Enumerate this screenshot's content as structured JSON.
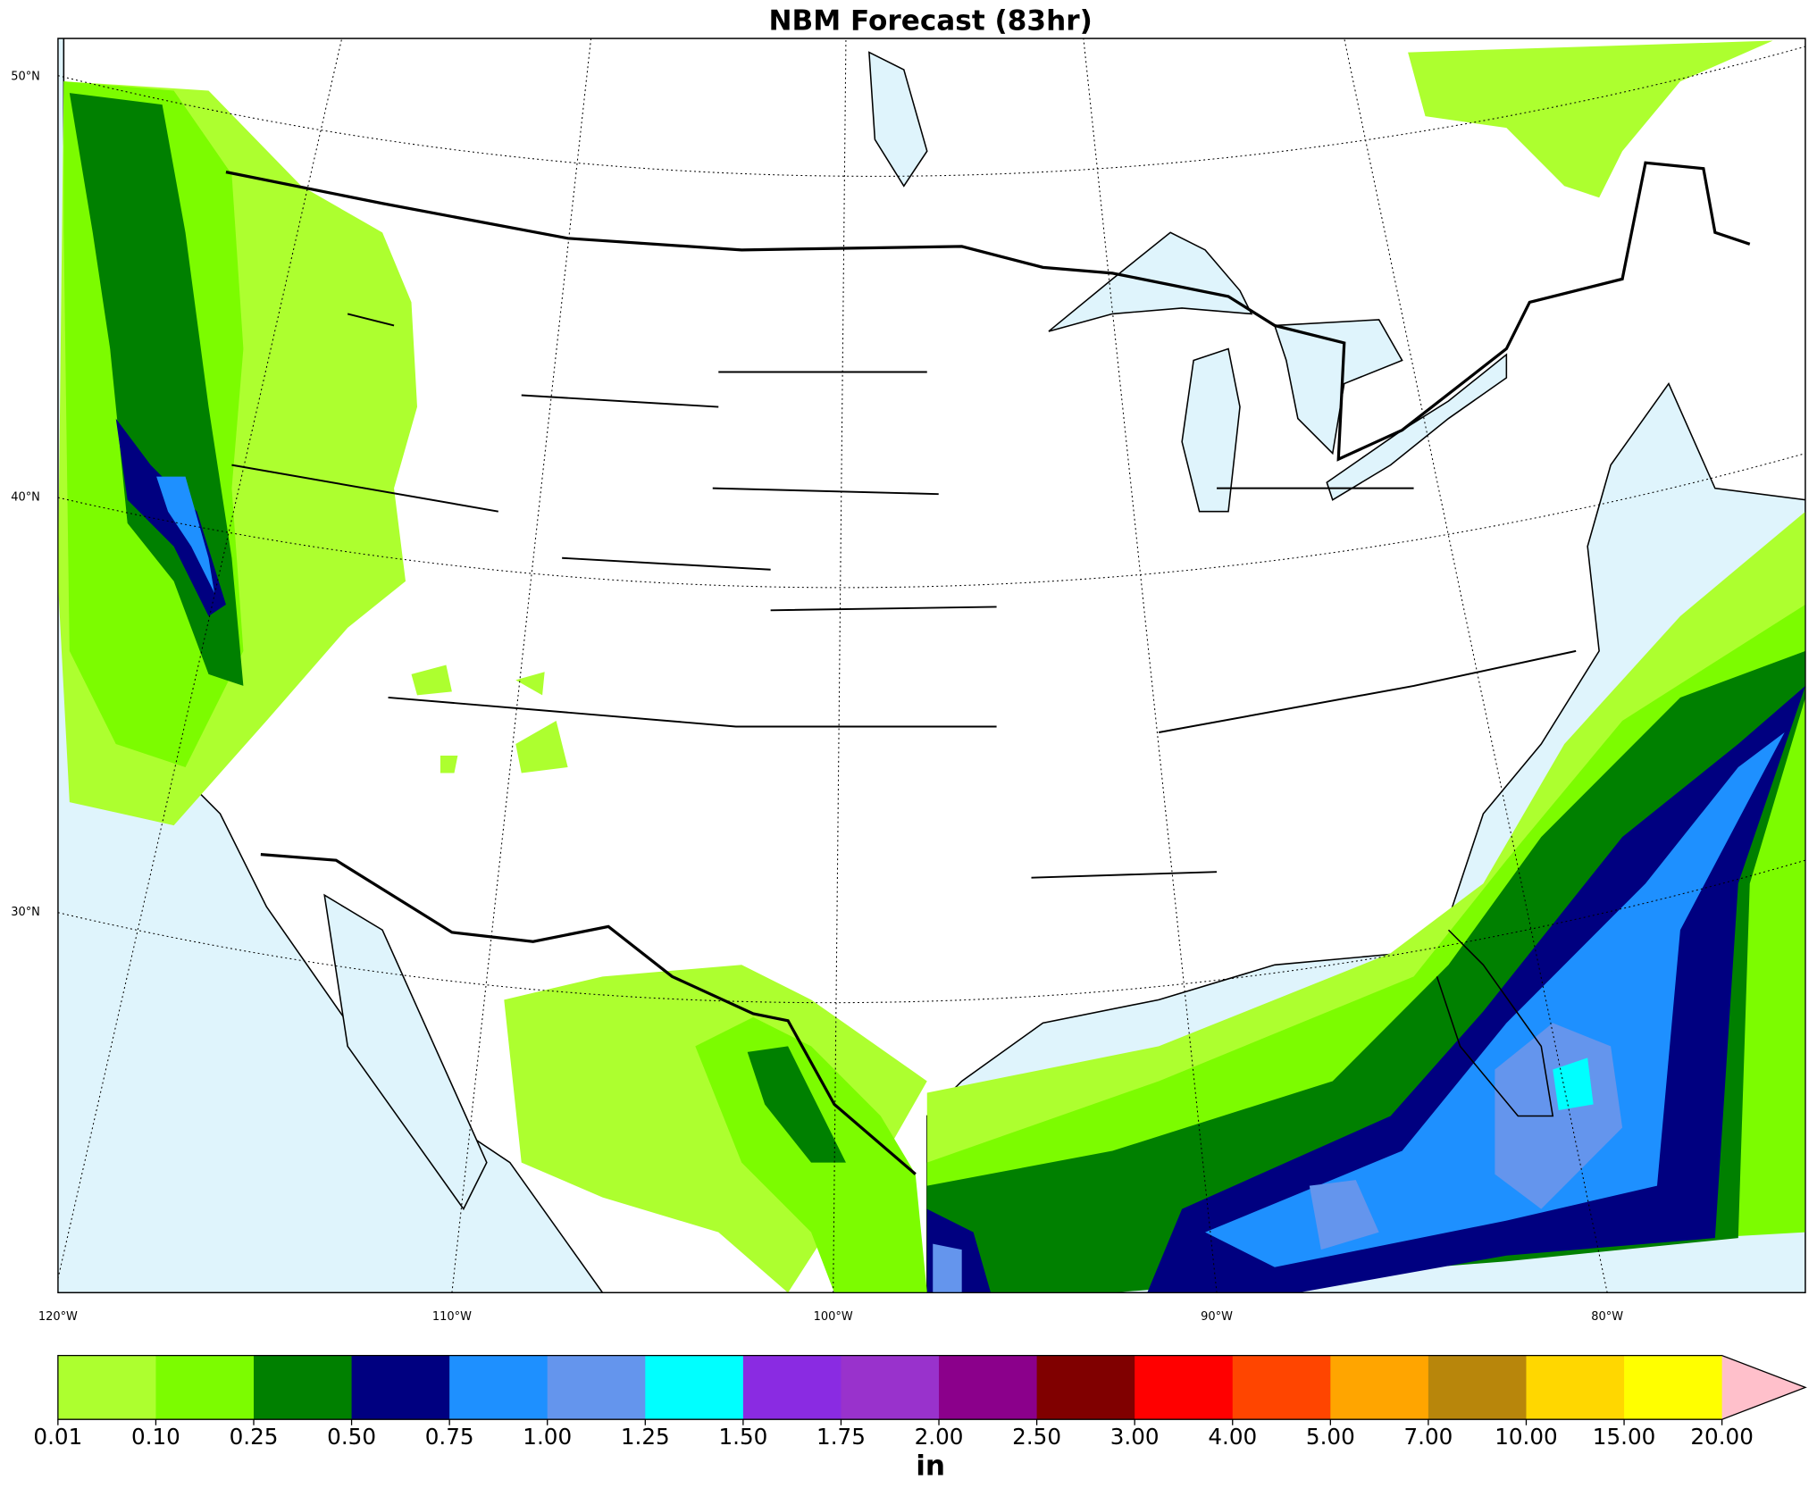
{
  "map": {
    "title": "NBM Forecast (83hr)",
    "lat_labels": [
      "50°N",
      "40°N",
      "30°N"
    ],
    "lon_labels": [
      "120°W",
      "110°W",
      "100°W",
      "90°W",
      "80°W"
    ],
    "colorbar": {
      "label": "in",
      "levels": [
        0.01,
        {
          "value": 0.1,
          "label": "0.10"
        },
        0.25,
        {
          "value": 0.5,
          "label": "0.50"
        },
        0.75,
        {
          "value": 1,
          "label": "1.00"
        },
        1.25,
        {
          "value": 1.5,
          "label": "1.50"
        },
        1.75,
        {
          "value": 2,
          "label": "2.00"
        },
        {
          "value": 2.5,
          "label": "2.50"
        },
        {
          "value": 3,
          "label": "3.00"
        },
        {
          "value": 4,
          "label": "4.00"
        },
        {
          "value": 5,
          "label": "5.00"
        },
        {
          "value": 7,
          "label": "7.00"
        },
        {
          "value": 10,
          "label": "10.00"
        },
        {
          "value": 15,
          "label": "15.00"
        },
        {
          "value": 20,
          "label": "20.00"
        }
      ],
      "colors": [
        "#adff2f",
        "#7cfc00",
        "#008000",
        "#000080",
        "#1e90ff",
        "#6495ed",
        "#00ffff",
        "#8a2be2",
        "#9932cc",
        "#8b008b",
        "#800000",
        "#ff0000",
        "#ff4500",
        "#ffa500",
        "#b8860b",
        "#ffd700",
        "#ffff00"
      ],
      "extend_color": "#ffc0cb"
    }
  }
}
